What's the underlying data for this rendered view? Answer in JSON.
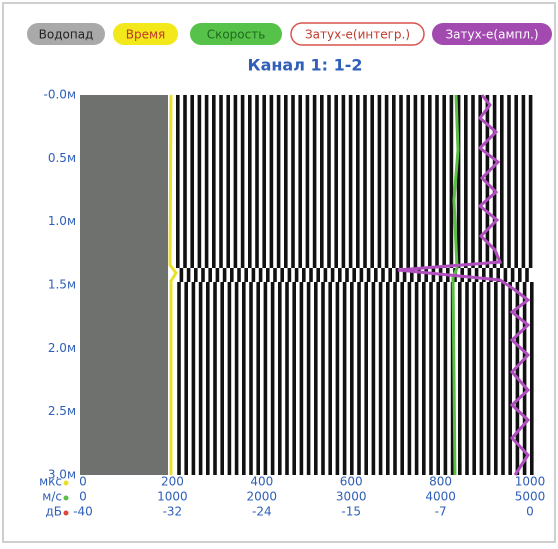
{
  "buttons": [
    "Водопад",
    "Время",
    "Скорость",
    "Затух-е(интегр.)",
    "Затух-е(ампл.)"
  ],
  "title": "Канал 1: 1-2",
  "depth_labels": [
    "-0.0м",
    "0.5м",
    "1.0м",
    "1.5м",
    "2.0м",
    "2.5м",
    "3.0м"
  ],
  "x_axes": [
    {
      "unit": "мкс",
      "ticks": [
        0,
        200,
        400,
        600,
        800,
        1000
      ]
    },
    {
      "unit": "м/с",
      "ticks": [
        0,
        1000,
        2000,
        3000,
        4000,
        5000
      ]
    },
    {
      "unit": "дБ",
      "ticks": [
        -40,
        -32,
        -24,
        -15,
        -7,
        0
      ]
    }
  ]
}
